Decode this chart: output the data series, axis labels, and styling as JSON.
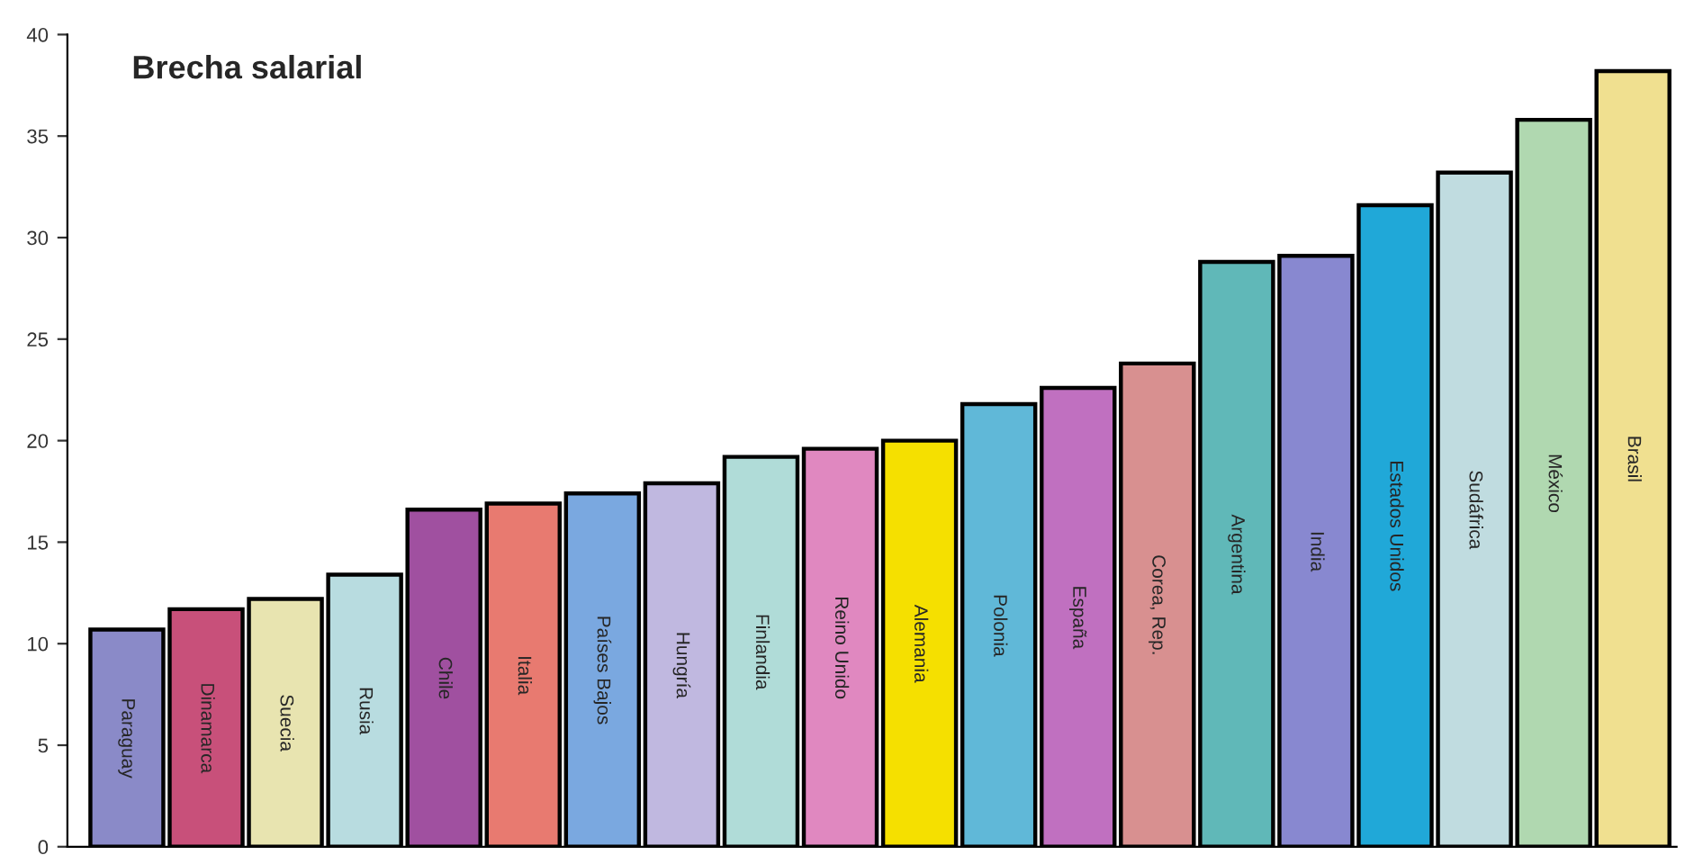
{
  "chart_data": {
    "type": "bar",
    "title": "Brecha salarial",
    "categories": [
      "Paraguay",
      "Dinamarca",
      "Suecia",
      "Rusia",
      "Chile",
      "Italia",
      "Países Bajos",
      "Hungría",
      "Finlandia",
      "Reino Unido",
      "Alemania",
      "Polonia",
      "España",
      "Corea, Rep.",
      "Argentina",
      "India",
      "Estados Unidos",
      "Sudáfrica",
      "México",
      "Brasil"
    ],
    "values": [
      10.7,
      11.7,
      12.2,
      13.4,
      16.6,
      16.9,
      17.4,
      17.9,
      19.2,
      19.6,
      20.0,
      21.8,
      22.6,
      23.8,
      28.8,
      29.1,
      31.6,
      33.2,
      35.8,
      38.2
    ],
    "colors": [
      "#8a8ac8",
      "#c8507a",
      "#e8e4b0",
      "#b8dce0",
      "#a050a0",
      "#e87a70",
      "#7aa8e0",
      "#c0b8e0",
      "#b0dcd8",
      "#e088c0",
      "#f5e000",
      "#60b8d8",
      "#c070c0",
      "#d89090",
      "#60b8b8",
      "#8888d0",
      "#20a8d8",
      "#c0dce0",
      "#b0d8b0",
      "#f0e090"
    ],
    "ylim": [
      0,
      40
    ],
    "yticks": [
      0,
      5,
      10,
      15,
      20,
      25,
      30,
      35,
      40
    ],
    "grid": false,
    "legend": false
  }
}
